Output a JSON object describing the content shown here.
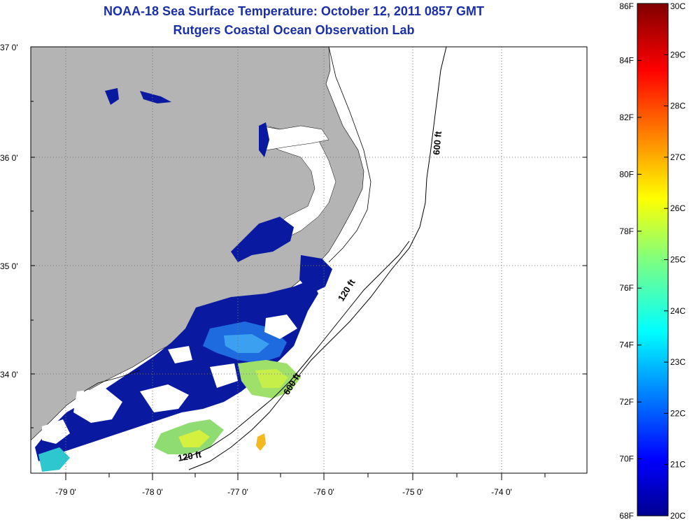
{
  "title_line1": "NOAA-18 Sea Surface Temperature:  October 12, 2011 0857 GMT",
  "title_line2": "Rutgers Coastal Ocean Observation Lab",
  "map": {
    "lat_labels": [
      "37 0'",
      "36 0'",
      "35 0'",
      "34 0'"
    ],
    "lon_labels": [
      "-79 0'",
      "-78 0'",
      "-77 0'",
      "-76 0'",
      "-75 0'",
      "-74 0'"
    ],
    "contour_labels": [
      "600 ft",
      "120 ft",
      "600 ft",
      "120 ft"
    ],
    "colors": {
      "land": "#b4b4b4",
      "ocean_nodata": "#ffffff"
    }
  },
  "colorbar": {
    "fahrenheit_labels": [
      "86F",
      "84F",
      "82F",
      "80F",
      "78F",
      "76F",
      "74F",
      "72F",
      "70F",
      "68F"
    ],
    "celsius_labels": [
      "30C",
      "29C",
      "28C",
      "27C",
      "26C",
      "25C",
      "24C",
      "23C",
      "22C",
      "21C",
      "20C"
    ],
    "range_c": [
      20,
      30
    ],
    "range_f": [
      68,
      86
    ],
    "colormap": "jet"
  }
}
